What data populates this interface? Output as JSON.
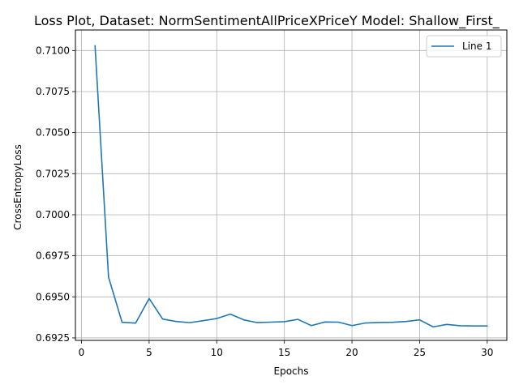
{
  "chart_data": {
    "type": "line",
    "title": "Loss Plot, Dataset: NormSentimentAllPriceXPriceY Model: Shallow_First_",
    "xlabel": "Epochs",
    "ylabel": "CrossEntropyLoss",
    "xlim": [
      -0.45,
      31.45
    ],
    "ylim": [
      0.69235,
      0.71125
    ],
    "xticks": [
      0,
      5,
      10,
      15,
      20,
      25,
      30
    ],
    "xtick_labels": [
      "0",
      "5",
      "10",
      "15",
      "20",
      "25",
      "30"
    ],
    "yticks": [
      0.6925,
      0.695,
      0.6975,
      0.7,
      0.7025,
      0.705,
      0.7075,
      0.71
    ],
    "ytick_labels": [
      "0.6925",
      "0.6950",
      "0.6975",
      "0.7000",
      "0.7025",
      "0.7050",
      "0.7075",
      "0.7100"
    ],
    "grid": true,
    "legend_position": "top-right",
    "series": [
      {
        "name": "Line 1",
        "color": "#1f77b4",
        "x": [
          1,
          2,
          3,
          4,
          5,
          6,
          7,
          8,
          9,
          10,
          11,
          12,
          13,
          14,
          15,
          16,
          17,
          18,
          19,
          20,
          21,
          22,
          23,
          24,
          25,
          26,
          27,
          28,
          29,
          30
        ],
        "y": [
          0.7103,
          0.6962,
          0.69345,
          0.6934,
          0.6949,
          0.69365,
          0.6935,
          0.69343,
          0.69355,
          0.69368,
          0.69395,
          0.6936,
          0.69343,
          0.69346,
          0.69349,
          0.69363,
          0.69325,
          0.69347,
          0.69346,
          0.69325,
          0.69341,
          0.69344,
          0.69345,
          0.6935,
          0.6936,
          0.69317,
          0.69332,
          0.69324,
          0.69323,
          0.69323
        ]
      }
    ]
  }
}
